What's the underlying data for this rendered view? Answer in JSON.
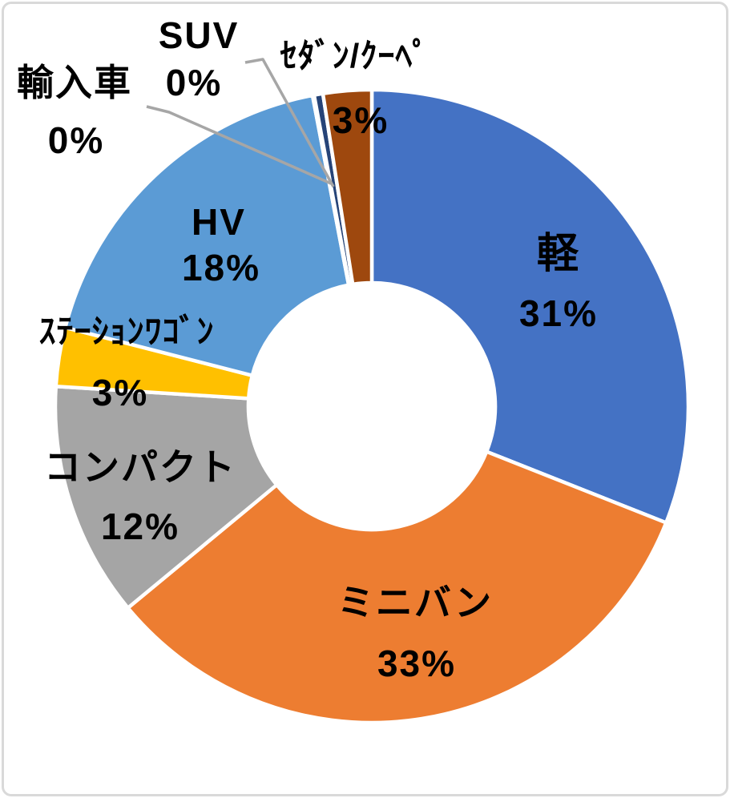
{
  "chart_data": {
    "type": "pie",
    "subtype": "donut",
    "title": "",
    "categories": [
      "軽",
      "ミニバン",
      "コンパクト",
      "ｽﾃｰｼｮﾝﾜｺﾞﾝ",
      "HV",
      "輸入車",
      "SUV",
      "ｾﾀﾞﾝ/ｸｰﾍﾟ"
    ],
    "values": [
      31,
      33,
      12,
      3,
      18,
      0,
      0,
      3
    ],
    "pct_labels": [
      "31%",
      "33%",
      "12%",
      "3%",
      "18%",
      "0%",
      "0%",
      "3%"
    ],
    "draw_values": [
      31,
      33,
      12,
      3,
      18,
      0.08,
      0.45,
      2.47
    ],
    "colors": [
      "#4472C4",
      "#ED7D31",
      "#A5A5A5",
      "#FFC000",
      "#5B9BD5",
      "#70AD47",
      "#264478",
      "#9E480E"
    ],
    "slice_keys": [
      "kei",
      "minivan",
      "compact",
      "wagon",
      "hv",
      "import",
      "suv",
      "sedan"
    ],
    "slice_border_color": "#FFFFFF",
    "leader_line_color": "#A6A6A6",
    "donut_hole_ratio": 0.39,
    "start_angle_deg": 0,
    "direction": "clockwise",
    "legend": "none"
  },
  "frame": {
    "border_color": "#D9D9D9",
    "background": "#FFFFFF"
  }
}
